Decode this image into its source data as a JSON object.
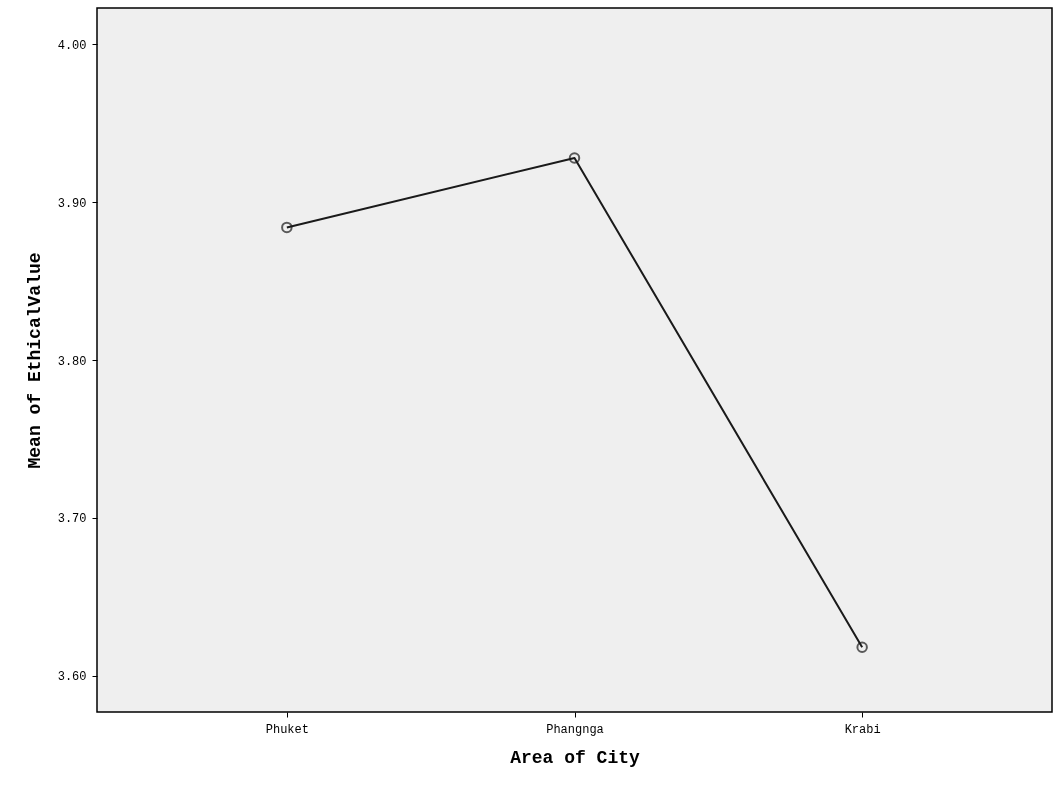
{
  "chart_data": {
    "type": "line",
    "xlabel": "Area of City",
    "ylabel": "Mean of EthicalValue",
    "categories": [
      "Phuket",
      "Phangnga",
      "Krabi"
    ],
    "series": [
      {
        "color": "#1a1a1a",
        "values": [
          3.884,
          3.928,
          3.618
        ]
      }
    ],
    "ylim": [
      3.577,
      4.023
    ],
    "yticks": [
      {
        "value": 3.6,
        "label": "3.60"
      },
      {
        "value": 3.7,
        "label": "3.70"
      },
      {
        "value": 3.8,
        "label": "3.80"
      },
      {
        "value": 3.9,
        "label": "3.90"
      },
      {
        "value": 4.0,
        "label": "4.00"
      }
    ],
    "grid": false,
    "marker": "circle",
    "line_style": "solid"
  }
}
